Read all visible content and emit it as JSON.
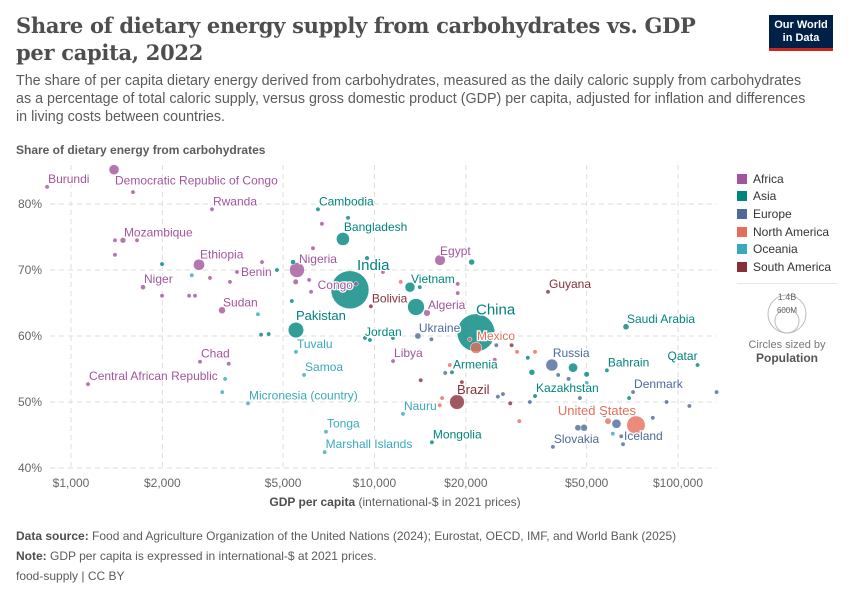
{
  "title": "Share of dietary energy supply from carbohydrates vs. GDP per capita, 2022",
  "subtitle": "The share of per capita dietary energy derived from carbohydrates, measured as the daily caloric supply from carbohydrates as a percentage of total caloric supply, versus gross domestic product (GDP) per capita, adjusted for inflation and differences in living costs between countries.",
  "logo": {
    "line1": "Our World",
    "line2": "in Data"
  },
  "legend": {
    "items": [
      {
        "label": "Africa",
        "color": "#a2559c"
      },
      {
        "label": "Asia",
        "color": "#00847e"
      },
      {
        "label": "Europe",
        "color": "#4c6a9c"
      },
      {
        "label": "North America",
        "color": "#e56e5a"
      },
      {
        "label": "Oceania",
        "color": "#38aaba"
      },
      {
        "label": "South America",
        "color": "#883039"
      }
    ],
    "size_large": "1.4B",
    "size_small": "600M",
    "size_caption": "Circles sized by",
    "size_variable": "Population"
  },
  "footer": {
    "source_label": "Data source:",
    "source": "Food and Agriculture Organization of the United Nations (2024); Eurostat, OECD, IMF, and World Bank (2025)",
    "note_label": "Note:",
    "note": "GDP per capita is expressed in international-$ at 2021 prices.",
    "license": "food-supply | CC BY"
  },
  "chart_data": {
    "type": "scatter",
    "title": "Share of dietary energy supply from carbohydrates vs. GDP per capita, 2022",
    "ylabel": "Share of dietary energy from carbohydrates",
    "xlabel_bold": "GDP per capita",
    "xlabel_rest": " (international-$ in 2021 prices)",
    "x_scale": "log",
    "xlim": [
      800,
      135000
    ],
    "ylim": [
      40,
      87
    ],
    "x_ticks": [
      1000,
      2000,
      5000,
      10000,
      20000,
      50000,
      100000
    ],
    "x_tick_labels": [
      "$1,000",
      "$2,000",
      "$5,000",
      "$10,000",
      "$20,000",
      "$50,000",
      "$100,000"
    ],
    "y_ticks": [
      40,
      50,
      60,
      70,
      80
    ],
    "y_tick_labels": [
      "40%",
      "50%",
      "60%",
      "70%",
      "80%"
    ],
    "grid": true,
    "legend_position": "right",
    "points": [
      {
        "name": "Burundi",
        "x": 834,
        "y": 82.6,
        "continent": "Africa",
        "pop": 13
      },
      {
        "name": "Democratic Republic of Congo",
        "x": 1386,
        "y": 85.2,
        "continent": "Africa",
        "pop": 102
      },
      {
        "name": "Rwanda",
        "x": 2914,
        "y": 79.2,
        "continent": "Africa",
        "pop": 14
      },
      {
        "name": "Mozambique",
        "x": 1483,
        "y": 74.5,
        "continent": "Africa",
        "pop": 33
      },
      {
        "name": "Ethiopia",
        "x": 2641,
        "y": 70.8,
        "continent": "Africa",
        "pop": 126
      },
      {
        "name": "Niger",
        "x": 1727,
        "y": 67.4,
        "continent": "Africa",
        "pop": 26
      },
      {
        "name": "Benin",
        "x": 3523,
        "y": 69.7,
        "continent": "Africa",
        "pop": 13
      },
      {
        "name": "Sudan",
        "x": 3145,
        "y": 63.9,
        "continent": "Africa",
        "pop": 48
      },
      {
        "name": "Nigeria",
        "x": 5553,
        "y": 70.0,
        "continent": "Africa",
        "pop": 224
      },
      {
        "name": "Congo",
        "x": 8690,
        "y": 67.9,
        "continent": "Africa",
        "pop": 6
      },
      {
        "name": "Cambodia",
        "x": 6513,
        "y": 79.2,
        "continent": "Asia",
        "pop": 17
      },
      {
        "name": "Bangladesh",
        "x": 7870,
        "y": 74.7,
        "continent": "Asia",
        "pop": 172
      },
      {
        "name": "India",
        "x": 8300,
        "y": 67.0,
        "continent": "Asia",
        "pop": 1430
      },
      {
        "name": "Egypt",
        "x": 16440,
        "y": 71.5,
        "continent": "Africa",
        "pop": 112
      },
      {
        "name": "Vietnam",
        "x": 13090,
        "y": 67.4,
        "continent": "Asia",
        "pop": 99
      },
      {
        "name": "Bolivia",
        "x": 9730,
        "y": 64.5,
        "continent": "South America",
        "pop": 12
      },
      {
        "name": "Algeria",
        "x": 14890,
        "y": 63.5,
        "continent": "Africa",
        "pop": 45
      },
      {
        "name": "China",
        "x": 21600,
        "y": 60.5,
        "continent": "Asia",
        "pop": 1410
      },
      {
        "name": "Guyana",
        "x": 37300,
        "y": 66.7,
        "continent": "South America",
        "pop": 1
      },
      {
        "name": "Saudi Arabia",
        "x": 67400,
        "y": 61.4,
        "continent": "Asia",
        "pop": 37
      },
      {
        "name": "Pakistan",
        "x": 5510,
        "y": 60.9,
        "continent": "Asia",
        "pop": 240
      },
      {
        "name": "Jordan",
        "x": 9660,
        "y": 59.4,
        "continent": "Asia",
        "pop": 11
      },
      {
        "name": "Ukraine",
        "x": 13900,
        "y": 60.0,
        "continent": "Europe",
        "pop": 38
      },
      {
        "name": "Mexico",
        "x": 21600,
        "y": 58.2,
        "continent": "North America",
        "pop": 128
      },
      {
        "name": "Tuvalu",
        "x": 5510,
        "y": 57.6,
        "continent": "Oceania",
        "pop": 0.01
      },
      {
        "name": "Chad",
        "x": 2661,
        "y": 56.1,
        "continent": "Africa",
        "pop": 18
      },
      {
        "name": "Central African Republic",
        "x": 1138,
        "y": 52.7,
        "continent": "Africa",
        "pop": 5
      },
      {
        "name": "Samoa",
        "x": 5860,
        "y": 54.1,
        "continent": "Oceania",
        "pop": 0.2
      },
      {
        "name": "Micronesia (country)",
        "x": 3830,
        "y": 49.8,
        "continent": "Oceania",
        "pop": 0.1
      },
      {
        "name": "Tonga",
        "x": 6920,
        "y": 45.5,
        "continent": "Oceania",
        "pop": 0.1
      },
      {
        "name": "Marshall Islands",
        "x": 6850,
        "y": 42.4,
        "continent": "Oceania",
        "pop": 0.04
      },
      {
        "name": "Libya",
        "x": 11510,
        "y": 56.2,
        "continent": "Africa",
        "pop": 7
      },
      {
        "name": "Armenia",
        "x": 18000,
        "y": 54.5,
        "continent": "Asia",
        "pop": 3
      },
      {
        "name": "Brazil",
        "x": 18700,
        "y": 50.0,
        "continent": "South America",
        "pop": 216
      },
      {
        "name": "Nauru",
        "x": 12410,
        "y": 48.2,
        "continent": "Oceania",
        "pop": 0.01
      },
      {
        "name": "Mongolia",
        "x": 15460,
        "y": 43.9,
        "continent": "Asia",
        "pop": 3
      },
      {
        "name": "Russia",
        "x": 38400,
        "y": 55.6,
        "continent": "Europe",
        "pop": 144
      },
      {
        "name": "Bahrain",
        "x": 58300,
        "y": 54.8,
        "continent": "Asia",
        "pop": 1.5
      },
      {
        "name": "Qatar",
        "x": 116000,
        "y": 55.6,
        "continent": "Asia",
        "pop": 2.7
      },
      {
        "name": "Kazakhstan",
        "x": 33800,
        "y": 50.9,
        "continent": "Asia",
        "pop": 20
      },
      {
        "name": "Denmark",
        "x": 71100,
        "y": 51.5,
        "continent": "Europe",
        "pop": 6
      },
      {
        "name": "United States",
        "x": 72700,
        "y": 46.5,
        "continent": "North America",
        "pop": 335
      },
      {
        "name": "Iceland",
        "x": 65900,
        "y": 43.6,
        "continent": "Europe",
        "pop": 0.4
      },
      {
        "name": "Slovakia",
        "x": 38700,
        "y": 43.2,
        "continent": "Europe",
        "pop": 5.4
      },
      {
        "x": 1600,
        "y": 81.8,
        "continent": "Africa",
        "pop": 8
      },
      {
        "x": 1396,
        "y": 74.5,
        "continent": "Africa",
        "pop": 8
      },
      {
        "x": 1650,
        "y": 74.5,
        "continent": "Africa",
        "pop": 6
      },
      {
        "x": 1396,
        "y": 72.3,
        "continent": "Africa",
        "pop": 5
      },
      {
        "x": 2826,
        "y": 72.1,
        "continent": "Africa",
        "pop": 5
      },
      {
        "x": 2870,
        "y": 68.8,
        "continent": "Africa",
        "pop": 5
      },
      {
        "x": 3340,
        "y": 68.2,
        "continent": "Africa",
        "pop": 8
      },
      {
        "x": 1995,
        "y": 66.1,
        "continent": "Africa",
        "pop": 8
      },
      {
        "x": 2562,
        "y": 66.1,
        "continent": "Africa",
        "pop": 6
      },
      {
        "x": 2450,
        "y": 66.1,
        "continent": "Africa",
        "pop": 6
      },
      {
        "x": 4260,
        "y": 71.2,
        "continent": "Africa",
        "pop": 8
      },
      {
        "x": 6270,
        "y": 73.3,
        "continent": "Africa",
        "pop": 20
      },
      {
        "x": 6710,
        "y": 77.0,
        "continent": "Africa",
        "pop": 20
      },
      {
        "x": 5500,
        "y": 68.2,
        "continent": "Africa",
        "pop": 30
      },
      {
        "x": 6090,
        "y": 68.5,
        "continent": "Africa",
        "pop": 12
      },
      {
        "x": 6180,
        "y": 66.7,
        "continent": "Africa",
        "pop": 6
      },
      {
        "x": 3420,
        "y": 65.0,
        "continent": "Africa",
        "pop": 5
      },
      {
        "x": 3310,
        "y": 55.8,
        "continent": "Africa",
        "pop": 5
      },
      {
        "x": 18800,
        "y": 67.9,
        "continent": "Africa",
        "pop": 3
      },
      {
        "x": 18800,
        "y": 66.5,
        "continent": "Africa",
        "pop": 3
      },
      {
        "x": 10660,
        "y": 69.7,
        "continent": "Africa",
        "pop": 4
      },
      {
        "x": 24900,
        "y": 56.4,
        "continent": "Africa",
        "pop": 2
      },
      {
        "x": 1995,
        "y": 70.9,
        "continent": "Asia",
        "pop": 20
      },
      {
        "x": 2500,
        "y": 69.2,
        "continent": "Oceania",
        "pop": 1
      },
      {
        "x": 4770,
        "y": 70.0,
        "continent": "Asia",
        "pop": 8
      },
      {
        "x": 5390,
        "y": 71.2,
        "continent": "Asia",
        "pop": 25
      },
      {
        "x": 5340,
        "y": 65.3,
        "continent": "Asia",
        "pop": 5
      },
      {
        "x": 4230,
        "y": 60.2,
        "continent": "Asia",
        "pop": 5
      },
      {
        "x": 4480,
        "y": 60.3,
        "continent": "Asia",
        "pop": 10
      },
      {
        "x": 8180,
        "y": 77.9,
        "continent": "Asia",
        "pop": 7
      },
      {
        "x": 8130,
        "y": 76.5,
        "continent": "Asia",
        "pop": 7
      },
      {
        "x": 9450,
        "y": 71.8,
        "continent": "Asia",
        "pop": 22
      },
      {
        "x": 9750,
        "y": 70.9,
        "continent": "Asia",
        "pop": 5
      },
      {
        "x": 14100,
        "y": 67.4,
        "continent": "Asia",
        "pop": 5
      },
      {
        "x": 13700,
        "y": 64.4,
        "continent": "Asia",
        "pop": 278
      },
      {
        "x": 20900,
        "y": 71.2,
        "continent": "Asia",
        "pop": 35
      },
      {
        "x": 9300,
        "y": 59.7,
        "continent": "Asia",
        "pop": 5
      },
      {
        "x": 11500,
        "y": 59.7,
        "continent": "Asia",
        "pop": 5
      },
      {
        "x": 32000,
        "y": 56.7,
        "continent": "Asia",
        "pop": 20
      },
      {
        "x": 33000,
        "y": 54.5,
        "continent": "Asia",
        "pop": 35
      },
      {
        "x": 45100,
        "y": 55.2,
        "continent": "Asia",
        "pop": 85
      },
      {
        "x": 50000,
        "y": 54.2,
        "continent": "Asia",
        "pop": 30
      },
      {
        "x": 69000,
        "y": 50.6,
        "continent": "Asia",
        "pop": 5
      },
      {
        "x": 15400,
        "y": 59.5,
        "continent": "Europe",
        "pop": 6
      },
      {
        "x": 25200,
        "y": 58.6,
        "continent": "Europe",
        "pop": 5
      },
      {
        "x": 17100,
        "y": 54.4,
        "continent": "Europe",
        "pop": 5
      },
      {
        "x": 25500,
        "y": 50.8,
        "continent": "Europe",
        "pop": 5
      },
      {
        "x": 26500,
        "y": 51.2,
        "continent": "Europe",
        "pop": 5
      },
      {
        "x": 32500,
        "y": 50.0,
        "continent": "Europe",
        "pop": 5
      },
      {
        "x": 40300,
        "y": 54.1,
        "continent": "Europe",
        "pop": 5
      },
      {
        "x": 43600,
        "y": 53.5,
        "continent": "Europe",
        "pop": 20
      },
      {
        "x": 47500,
        "y": 50.6,
        "continent": "Europe",
        "pop": 5
      },
      {
        "x": 52000,
        "y": 49.1,
        "continent": "Europe",
        "pop": 10
      },
      {
        "x": 57200,
        "y": 48.0,
        "continent": "Europe",
        "pop": 5
      },
      {
        "x": 62700,
        "y": 46.7,
        "continent": "Europe",
        "pop": 84
      },
      {
        "x": 46800,
        "y": 46.1,
        "continent": "Europe",
        "pop": 38
      },
      {
        "x": 49000,
        "y": 46.1,
        "continent": "Europe",
        "pop": 48
      },
      {
        "x": 65000,
        "y": 44.8,
        "continent": "Europe",
        "pop": 10
      },
      {
        "x": 82600,
        "y": 47.6,
        "continent": "Europe",
        "pop": 5
      },
      {
        "x": 91700,
        "y": 50.0,
        "continent": "Europe",
        "pop": 5
      },
      {
        "x": 109000,
        "y": 49.4,
        "continent": "Europe",
        "pop": 5
      },
      {
        "x": 134000,
        "y": 51.5,
        "continent": "Europe",
        "pop": 1
      },
      {
        "x": 12200,
        "y": 68.2,
        "continent": "North America",
        "pop": 3
      },
      {
        "x": 17500,
        "y": 60.8,
        "continent": "North America",
        "pop": 3
      },
      {
        "x": 20600,
        "y": 59.5,
        "continent": "North America",
        "pop": 3
      },
      {
        "x": 17700,
        "y": 55.6,
        "continent": "North America",
        "pop": 3
      },
      {
        "x": 16700,
        "y": 50.6,
        "continent": "North America",
        "pop": 3
      },
      {
        "x": 16400,
        "y": 49.5,
        "continent": "North America",
        "pop": 3
      },
      {
        "x": 29500,
        "y": 57.6,
        "continent": "North America",
        "pop": 3
      },
      {
        "x": 33800,
        "y": 57.6,
        "continent": "North America",
        "pop": 3
      },
      {
        "x": 30000,
        "y": 47.1,
        "continent": "North America",
        "pop": 3
      },
      {
        "x": 58800,
        "y": 47.1,
        "continent": "North America",
        "pop": 40
      },
      {
        "x": 4130,
        "y": 63.3,
        "continent": "Oceania",
        "pop": 1
      },
      {
        "x": 3220,
        "y": 53.5,
        "continent": "Oceania",
        "pop": 1
      },
      {
        "x": 3150,
        "y": 51.5,
        "continent": "Oceania",
        "pop": 1
      },
      {
        "x": 50000,
        "y": 52.9,
        "continent": "Oceania",
        "pop": 1
      },
      {
        "x": 61000,
        "y": 45.2,
        "continent": "Oceania",
        "pop": 5
      },
      {
        "x": 14000,
        "y": 57.4,
        "continent": "South America",
        "pop": 3
      },
      {
        "x": 28300,
        "y": 58.6,
        "continent": "South America",
        "pop": 3
      },
      {
        "x": 14200,
        "y": 53.3,
        "continent": "South America",
        "pop": 3
      },
      {
        "x": 19400,
        "y": 53.0,
        "continent": "South America",
        "pop": 3
      },
      {
        "x": 28000,
        "y": 49.8,
        "continent": "South America",
        "pop": 20
      }
    ]
  }
}
